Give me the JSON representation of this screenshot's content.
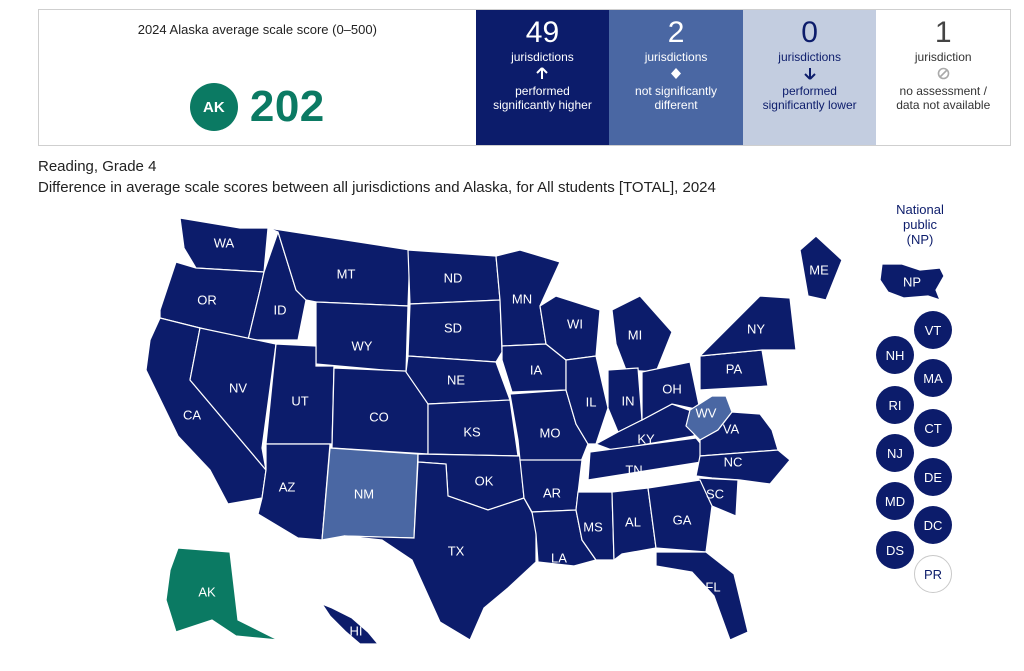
{
  "summary": {
    "score_title": "2024 Alaska average scale score (0–500)",
    "focal_abbr": "AK",
    "score_value": "202",
    "categories": [
      {
        "count": "49",
        "unit": "jurisdictions",
        "symbol": "arrow-up-icon",
        "label": "performed\nsignificantly higher",
        "color": "#0c1c6b"
      },
      {
        "count": "2",
        "unit": "jurisdictions",
        "symbol": "diamond-icon",
        "label": "not significantly\ndifferent",
        "color": "#4a67a3"
      },
      {
        "count": "0",
        "unit": "jurisdictions",
        "symbol": "arrow-down-icon",
        "label": "performed\nsignificantly lower",
        "color": "#c3cde0"
      },
      {
        "count": "1",
        "unit": "jurisdiction",
        "symbol": "not-available-icon",
        "label": "no assessment /\ndata not available",
        "color": "#ffffff"
      }
    ]
  },
  "subject": "Reading, Grade 4",
  "caption": "Difference in average scale scores between all jurisdictions and Alaska, for All students [TOTAL], 2024",
  "national": {
    "title": "National\npublic\n(NP)",
    "abbr": "NP"
  },
  "map_states": [
    {
      "abbr": "WA",
      "status": "higher"
    },
    {
      "abbr": "OR",
      "status": "higher"
    },
    {
      "abbr": "CA",
      "status": "higher"
    },
    {
      "abbr": "ID",
      "status": "higher"
    },
    {
      "abbr": "NV",
      "status": "higher"
    },
    {
      "abbr": "MT",
      "status": "higher"
    },
    {
      "abbr": "WY",
      "status": "higher"
    },
    {
      "abbr": "UT",
      "status": "higher"
    },
    {
      "abbr": "AZ",
      "status": "higher"
    },
    {
      "abbr": "CO",
      "status": "higher"
    },
    {
      "abbr": "NM",
      "status": "not-different"
    },
    {
      "abbr": "ND",
      "status": "higher"
    },
    {
      "abbr": "SD",
      "status": "higher"
    },
    {
      "abbr": "NE",
      "status": "higher"
    },
    {
      "abbr": "KS",
      "status": "higher"
    },
    {
      "abbr": "OK",
      "status": "higher"
    },
    {
      "abbr": "TX",
      "status": "higher"
    },
    {
      "abbr": "MN",
      "status": "higher"
    },
    {
      "abbr": "IA",
      "status": "higher"
    },
    {
      "abbr": "MO",
      "status": "higher"
    },
    {
      "abbr": "AR",
      "status": "higher"
    },
    {
      "abbr": "LA",
      "status": "higher"
    },
    {
      "abbr": "WI",
      "status": "higher"
    },
    {
      "abbr": "IL",
      "status": "higher"
    },
    {
      "abbr": "MS",
      "status": "higher"
    },
    {
      "abbr": "MI",
      "status": "higher"
    },
    {
      "abbr": "IN",
      "status": "higher"
    },
    {
      "abbr": "KY",
      "status": "higher"
    },
    {
      "abbr": "TN",
      "status": "higher"
    },
    {
      "abbr": "AL",
      "status": "higher"
    },
    {
      "abbr": "OH",
      "status": "higher"
    },
    {
      "abbr": "WV",
      "status": "not-different"
    },
    {
      "abbr": "VA",
      "status": "higher"
    },
    {
      "abbr": "NC",
      "status": "higher"
    },
    {
      "abbr": "SC",
      "status": "higher"
    },
    {
      "abbr": "GA",
      "status": "higher"
    },
    {
      "abbr": "FL",
      "status": "higher"
    },
    {
      "abbr": "PA",
      "status": "higher"
    },
    {
      "abbr": "NY",
      "status": "higher"
    },
    {
      "abbr": "ME",
      "status": "higher"
    },
    {
      "abbr": "AK",
      "status": "focal"
    },
    {
      "abbr": "HI",
      "status": "higher"
    }
  ],
  "small_jurisdictions": [
    {
      "abbr": "VT",
      "status": "higher"
    },
    {
      "abbr": "NH",
      "status": "higher"
    },
    {
      "abbr": "MA",
      "status": "higher"
    },
    {
      "abbr": "RI",
      "status": "higher"
    },
    {
      "abbr": "CT",
      "status": "higher"
    },
    {
      "abbr": "NJ",
      "status": "higher"
    },
    {
      "abbr": "DE",
      "status": "higher"
    },
    {
      "abbr": "MD",
      "status": "higher"
    },
    {
      "abbr": "DC",
      "status": "higher"
    },
    {
      "abbr": "DS",
      "status": "higher"
    },
    {
      "abbr": "PR",
      "status": "not-available"
    }
  ]
}
